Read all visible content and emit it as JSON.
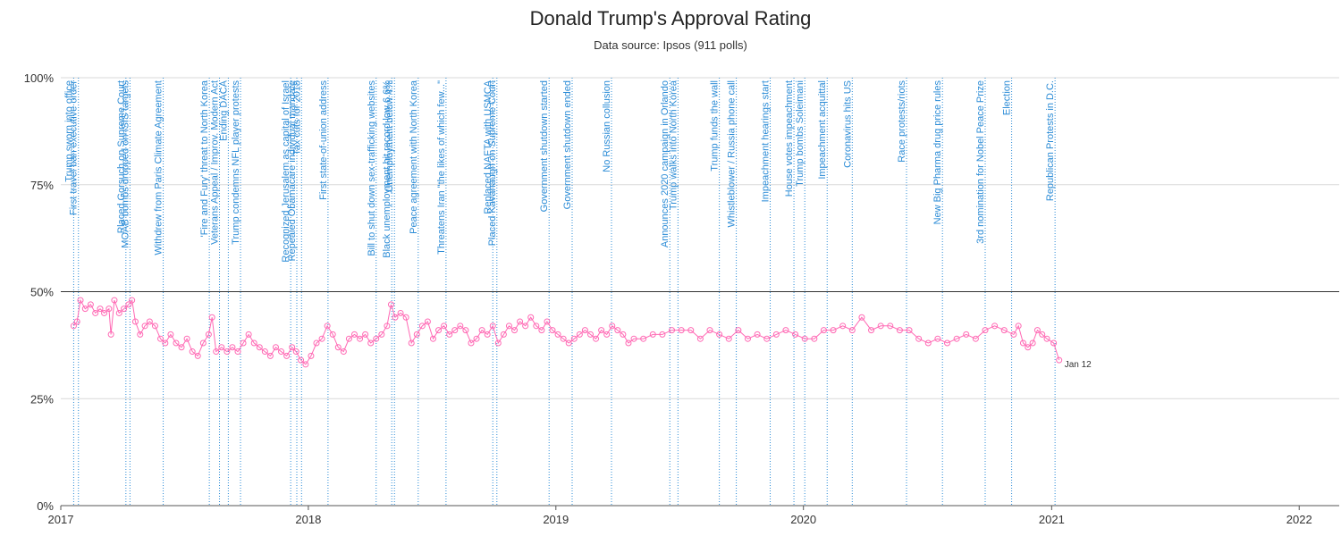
{
  "colors": {
    "series": "#ff69b4",
    "event_line": "#2a8bd6",
    "grid": "#d9d9d9",
    "ref_line": "#333333"
  },
  "chart_data": {
    "type": "line",
    "title": "Donald Trump's Approval Rating",
    "subtitle": "Data source: Ipsos (911 polls)",
    "xlabel": "",
    "ylabel": "",
    "xlim": [
      "2017-01-01",
      "2022-03-01"
    ],
    "ylim": [
      0,
      100
    ],
    "x_tick_labels": [
      "2017",
      "2018",
      "2019",
      "2020",
      "2021",
      "2022"
    ],
    "y_tick_labels": [
      {
        "value": 0,
        "label": "0%"
      },
      {
        "value": 25,
        "label": "25%"
      },
      {
        "value": 50,
        "label": "50%"
      },
      {
        "value": 75,
        "label": "75%"
      },
      {
        "value": 100,
        "label": "100%"
      }
    ],
    "reference_line": 50,
    "grid": true,
    "end_label": "Jan 12",
    "events": [
      {
        "date": "2017-01-20",
        "label": "Trump sworn into office"
      },
      {
        "date": "2017-01-27",
        "label": "First travel ban executive order"
      },
      {
        "date": "2017-04-07",
        "label": "Placed Gorsuch on Supreme Court"
      },
      {
        "date": "2017-04-13",
        "label": "MOAB bombs dropped on ISIS targets"
      },
      {
        "date": "2017-06-01",
        "label": "Withdrew from Paris Climate Agreement"
      },
      {
        "date": "2017-08-08",
        "label": "'Fire and Fury' threat to North Korea"
      },
      {
        "date": "2017-08-23",
        "label": "Veterans Appeal / Improv. Modern Act"
      },
      {
        "date": "2017-09-05",
        "label": "Ending DACA"
      },
      {
        "date": "2017-09-23",
        "label": "Trump condemns NFL player protests"
      },
      {
        "date": "2017-12-06",
        "label": "Recognized Jerusalem as capital of Israel"
      },
      {
        "date": "2017-12-15",
        "label": "Repealed Obamacare individual mandate"
      },
      {
        "date": "2017-12-22",
        "label": "Tax cuts for 2018"
      },
      {
        "date": "2018-01-30",
        "label": "First state-of-union address"
      },
      {
        "date": "2018-04-11",
        "label": "Bill to shut down sex-trafficking websites"
      },
      {
        "date": "2018-05-04",
        "label": "Black unemployment hit record low 6.6%"
      },
      {
        "date": "2018-05-08",
        "label": "Unemployment below 4%"
      },
      {
        "date": "2018-06-12",
        "label": "Peace agreement with North Korea"
      },
      {
        "date": "2018-07-23",
        "label": "Threatens Iran \"the likes of which few...\""
      },
      {
        "date": "2018-09-30",
        "label": "Replaced NAFTA with USMCA"
      },
      {
        "date": "2018-10-06",
        "label": "Placed Kavanaugh on Supreme Court"
      },
      {
        "date": "2018-12-22",
        "label": "Government shutdown started"
      },
      {
        "date": "2019-01-25",
        "label": "Government shutdown ended"
      },
      {
        "date": "2019-03-24",
        "label": "No Russian collusion"
      },
      {
        "date": "2019-06-18",
        "label": "Announces 2020 campaign in Orlando"
      },
      {
        "date": "2019-06-30",
        "label": "Trump walks into North Korea"
      },
      {
        "date": "2019-08-30",
        "label": "Trump funds the wall"
      },
      {
        "date": "2019-09-24",
        "label": "Whistleblower / Russia phone call"
      },
      {
        "date": "2019-11-13",
        "label": "Impeachment hearings start"
      },
      {
        "date": "2019-12-18",
        "label": "House votes impeachment"
      },
      {
        "date": "2020-01-03",
        "label": "Trump bombs Soleimani"
      },
      {
        "date": "2020-02-05",
        "label": "Impeachment acquittal"
      },
      {
        "date": "2020-03-13",
        "label": "Coronavirus hits US"
      },
      {
        "date": "2020-06-01",
        "label": "Race protests/riots"
      },
      {
        "date": "2020-07-24",
        "label": "New Big Pharma drug price rules"
      },
      {
        "date": "2020-09-25",
        "label": "3rd nomination for Nobel Peace Prize"
      },
      {
        "date": "2020-11-03",
        "label": "Election"
      },
      {
        "date": "2021-01-06",
        "label": "Republican Protests in D.C."
      }
    ],
    "series": [
      {
        "points": [
          [
            "2017-01-20",
            42
          ],
          [
            "2017-01-25",
            43
          ],
          [
            "2017-01-30",
            48
          ],
          [
            "2017-02-06",
            46
          ],
          [
            "2017-02-14",
            47
          ],
          [
            "2017-02-21",
            45
          ],
          [
            "2017-02-28",
            46
          ],
          [
            "2017-03-06",
            45
          ],
          [
            "2017-03-13",
            46
          ],
          [
            "2017-03-16",
            40
          ],
          [
            "2017-03-21",
            48
          ],
          [
            "2017-03-28",
            45
          ],
          [
            "2017-04-04",
            46
          ],
          [
            "2017-04-11",
            47
          ],
          [
            "2017-04-16",
            48
          ],
          [
            "2017-04-21",
            43
          ],
          [
            "2017-04-28",
            40
          ],
          [
            "2017-05-05",
            42
          ],
          [
            "2017-05-12",
            43
          ],
          [
            "2017-05-20",
            42
          ],
          [
            "2017-05-28",
            39
          ],
          [
            "2017-06-04",
            38
          ],
          [
            "2017-06-12",
            40
          ],
          [
            "2017-06-20",
            38
          ],
          [
            "2017-06-28",
            37
          ],
          [
            "2017-07-06",
            39
          ],
          [
            "2017-07-14",
            36
          ],
          [
            "2017-07-22",
            35
          ],
          [
            "2017-07-30",
            38
          ],
          [
            "2017-08-07",
            40
          ],
          [
            "2017-08-12",
            44
          ],
          [
            "2017-08-18",
            36
          ],
          [
            "2017-08-26",
            37
          ],
          [
            "2017-09-03",
            36
          ],
          [
            "2017-09-11",
            37
          ],
          [
            "2017-09-19",
            36
          ],
          [
            "2017-09-27",
            38
          ],
          [
            "2017-10-05",
            40
          ],
          [
            "2017-10-13",
            38
          ],
          [
            "2017-10-21",
            37
          ],
          [
            "2017-10-29",
            36
          ],
          [
            "2017-11-06",
            35
          ],
          [
            "2017-11-14",
            37
          ],
          [
            "2017-11-22",
            36
          ],
          [
            "2017-11-30",
            35
          ],
          [
            "2017-12-08",
            37
          ],
          [
            "2017-12-14",
            36
          ],
          [
            "2017-12-21",
            34
          ],
          [
            "2017-12-28",
            33
          ],
          [
            "2018-01-05",
            35
          ],
          [
            "2018-01-13",
            38
          ],
          [
            "2018-01-21",
            39
          ],
          [
            "2018-01-29",
            42
          ],
          [
            "2018-02-06",
            40
          ],
          [
            "2018-02-14",
            37
          ],
          [
            "2018-02-22",
            36
          ],
          [
            "2018-03-02",
            39
          ],
          [
            "2018-03-10",
            40
          ],
          [
            "2018-03-18",
            39
          ],
          [
            "2018-03-26",
            40
          ],
          [
            "2018-04-03",
            38
          ],
          [
            "2018-04-11",
            39
          ],
          [
            "2018-04-19",
            40
          ],
          [
            "2018-04-27",
            42
          ],
          [
            "2018-05-03",
            47
          ],
          [
            "2018-05-09",
            44
          ],
          [
            "2018-05-17",
            45
          ],
          [
            "2018-05-25",
            44
          ],
          [
            "2018-06-02",
            38
          ],
          [
            "2018-06-10",
            40
          ],
          [
            "2018-06-18",
            42
          ],
          [
            "2018-06-26",
            43
          ],
          [
            "2018-07-04",
            39
          ],
          [
            "2018-07-12",
            41
          ],
          [
            "2018-07-20",
            42
          ],
          [
            "2018-07-28",
            40
          ],
          [
            "2018-08-05",
            41
          ],
          [
            "2018-08-13",
            42
          ],
          [
            "2018-08-21",
            41
          ],
          [
            "2018-08-29",
            38
          ],
          [
            "2018-09-06",
            39
          ],
          [
            "2018-09-14",
            41
          ],
          [
            "2018-09-22",
            40
          ],
          [
            "2018-09-30",
            42
          ],
          [
            "2018-10-08",
            38
          ],
          [
            "2018-10-16",
            40
          ],
          [
            "2018-10-24",
            42
          ],
          [
            "2018-11-01",
            41
          ],
          [
            "2018-11-09",
            43
          ],
          [
            "2018-11-17",
            42
          ],
          [
            "2018-11-25",
            44
          ],
          [
            "2018-12-03",
            42
          ],
          [
            "2018-12-11",
            41
          ],
          [
            "2018-12-19",
            43
          ],
          [
            "2018-12-27",
            41
          ],
          [
            "2019-01-04",
            40
          ],
          [
            "2019-01-12",
            39
          ],
          [
            "2019-01-20",
            38
          ],
          [
            "2019-01-28",
            39
          ],
          [
            "2019-02-05",
            40
          ],
          [
            "2019-02-13",
            41
          ],
          [
            "2019-02-21",
            40
          ],
          [
            "2019-03-01",
            39
          ],
          [
            "2019-03-09",
            41
          ],
          [
            "2019-03-17",
            40
          ],
          [
            "2019-03-25",
            42
          ],
          [
            "2019-04-02",
            41
          ],
          [
            "2019-04-10",
            40
          ],
          [
            "2019-04-18",
            38
          ],
          [
            "2019-04-26",
            39
          ],
          [
            "2019-05-10",
            39
          ],
          [
            "2019-05-24",
            40
          ],
          [
            "2019-06-07",
            40
          ],
          [
            "2019-06-21",
            41
          ],
          [
            "2019-07-05",
            41
          ],
          [
            "2019-07-19",
            41
          ],
          [
            "2019-08-02",
            39
          ],
          [
            "2019-08-16",
            41
          ],
          [
            "2019-08-30",
            40
          ],
          [
            "2019-09-13",
            39
          ],
          [
            "2019-09-27",
            41
          ],
          [
            "2019-10-11",
            39
          ],
          [
            "2019-10-25",
            40
          ],
          [
            "2019-11-08",
            39
          ],
          [
            "2019-11-22",
            40
          ],
          [
            "2019-12-06",
            41
          ],
          [
            "2019-12-20",
            40
          ],
          [
            "2020-01-03",
            39
          ],
          [
            "2020-01-17",
            39
          ],
          [
            "2020-01-31",
            41
          ],
          [
            "2020-02-14",
            41
          ],
          [
            "2020-02-28",
            42
          ],
          [
            "2020-03-13",
            41
          ],
          [
            "2020-03-27",
            44
          ],
          [
            "2020-04-10",
            41
          ],
          [
            "2020-04-24",
            42
          ],
          [
            "2020-05-08",
            42
          ],
          [
            "2020-05-22",
            41
          ],
          [
            "2020-06-05",
            41
          ],
          [
            "2020-06-19",
            39
          ],
          [
            "2020-07-03",
            38
          ],
          [
            "2020-07-17",
            39
          ],
          [
            "2020-07-31",
            38
          ],
          [
            "2020-08-14",
            39
          ],
          [
            "2020-08-28",
            40
          ],
          [
            "2020-09-11",
            39
          ],
          [
            "2020-09-25",
            41
          ],
          [
            "2020-10-09",
            42
          ],
          [
            "2020-10-23",
            41
          ],
          [
            "2020-11-06",
            40
          ],
          [
            "2020-11-13",
            42
          ],
          [
            "2020-11-20",
            38
          ],
          [
            "2020-11-27",
            37
          ],
          [
            "2020-12-04",
            38
          ],
          [
            "2020-12-11",
            41
          ],
          [
            "2020-12-18",
            40
          ],
          [
            "2020-12-25",
            39
          ],
          [
            "2021-01-04",
            38
          ],
          [
            "2021-01-12",
            34
          ]
        ]
      }
    ]
  }
}
